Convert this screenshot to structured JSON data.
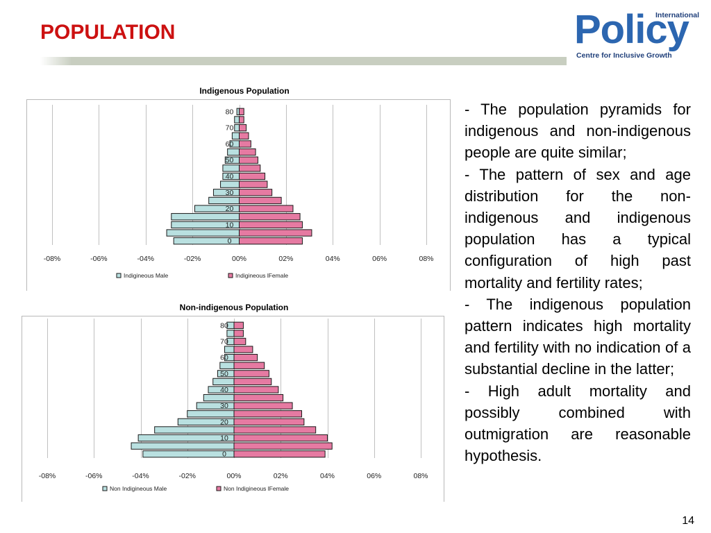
{
  "slide": {
    "title": "POPULATION",
    "page_number": "14",
    "paragraphs": [
      "- The population pyramids for indigenous and non-indigenous people are quite similar;",
      "- The pattern of sex and age distribution for the non-indigenous and indigenous population has a typical configuration of high past mortality and fertility rates;",
      "- The indigenous population pattern indicates high mortality and fertility with no indication of a substantial decline in the latter;",
      "- High adult mortality and possibly combined with outmigration are reasonable hypothesis."
    ]
  },
  "logo": {
    "small_text": "International",
    "main_text": "Policy",
    "sub_text": "Centre for Inclusive Growth"
  },
  "colors": {
    "title": "#cc1111",
    "male_bar": "#b9e0e0",
    "female_bar": "#e67aa2",
    "bar_outline": "#1a1a1a",
    "gridline": "#c0c0c0",
    "logo_blue": "#2c66b0"
  },
  "chart_data": [
    {
      "type": "bar",
      "orientation": "horizontal",
      "stacked": "diverging",
      "title": "Indigenous Population",
      "categories": [
        "0",
        "5",
        "10",
        "15",
        "20",
        "25",
        "30",
        "35",
        "40",
        "45",
        "50",
        "55",
        "60",
        "65",
        "70",
        "75",
        "80"
      ],
      "y_tick_labels": [
        "0",
        "10",
        "20",
        "30",
        "40",
        "50",
        "60",
        "70",
        "80"
      ],
      "x_tick_labels": [
        "-08%",
        "-06%",
        "-04%",
        "-02%",
        "00%",
        "02%",
        "04%",
        "06%",
        "08%"
      ],
      "xlim": [
        -0.08,
        0.08
      ],
      "grid": true,
      "legend_position": "bottom",
      "series": [
        {
          "name": "Indigineous  Male",
          "color": "#b9e0e0",
          "values": [
            -0.028,
            -0.031,
            -0.029,
            -0.029,
            -0.019,
            -0.013,
            -0.011,
            -0.008,
            -0.007,
            -0.007,
            -0.006,
            -0.005,
            -0.004,
            -0.003,
            -0.002,
            -0.002,
            -0.001
          ]
        },
        {
          "name": "Indigineous lFemale",
          "color": "#e67aa2",
          "values": [
            0.027,
            0.031,
            0.027,
            0.026,
            0.023,
            0.018,
            0.014,
            0.012,
            0.011,
            0.009,
            0.008,
            0.007,
            0.005,
            0.004,
            0.003,
            0.002,
            0.002
          ]
        }
      ]
    },
    {
      "type": "bar",
      "orientation": "horizontal",
      "stacked": "diverging",
      "title": "Non-indigenous Population",
      "categories": [
        "0",
        "5",
        "10",
        "15",
        "20",
        "25",
        "30",
        "35",
        "40",
        "45",
        "50",
        "55",
        "60",
        "65",
        "70",
        "75",
        "80"
      ],
      "y_tick_labels": [
        "0",
        "10",
        "20",
        "30",
        "40",
        "50",
        "60",
        "70",
        "80"
      ],
      "x_tick_labels": [
        "-08%",
        "-06%",
        "-04%",
        "-02%",
        "00%",
        "02%",
        "04%",
        "06%",
        "08%"
      ],
      "xlim": [
        -0.08,
        0.08
      ],
      "grid": true,
      "legend_position": "bottom",
      "series": [
        {
          "name": "Non Indigineous  Male",
          "color": "#b9e0e0",
          "values": [
            -0.039,
            -0.044,
            -0.041,
            -0.034,
            -0.024,
            -0.02,
            -0.016,
            -0.013,
            -0.011,
            -0.009,
            -0.007,
            -0.006,
            -0.004,
            -0.004,
            -0.003,
            -0.003,
            -0.003
          ]
        },
        {
          "name": "Non Indigineous lFemale",
          "color": "#e67aa2",
          "values": [
            0.039,
            0.042,
            0.04,
            0.035,
            0.03,
            0.029,
            0.025,
            0.021,
            0.019,
            0.016,
            0.015,
            0.013,
            0.01,
            0.008,
            0.005,
            0.004,
            0.004
          ]
        }
      ]
    }
  ]
}
